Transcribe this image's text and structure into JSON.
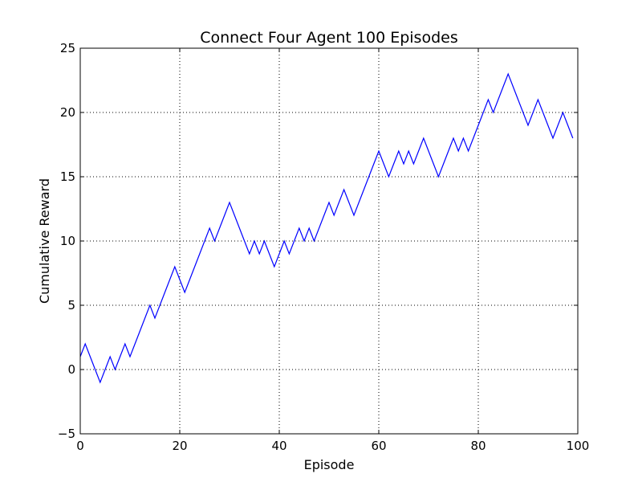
{
  "chart_data": {
    "type": "line",
    "title": "Connect Four Agent 100 Episodes",
    "xlabel": "Episode",
    "ylabel": "Cumulative Reward",
    "xlim": [
      0,
      100
    ],
    "ylim": [
      -5,
      25
    ],
    "xticks": [
      0,
      20,
      40,
      60,
      80,
      100
    ],
    "yticks": [
      -5,
      0,
      5,
      10,
      15,
      20,
      25
    ],
    "xtick_labels": [
      "0",
      "20",
      "40",
      "60",
      "80",
      "100"
    ],
    "ytick_labels": [
      "−5",
      "0",
      "5",
      "10",
      "15",
      "20",
      "25"
    ],
    "grid": true,
    "line_color": "#0000ff",
    "series": [
      {
        "x": [
          0,
          1,
          2,
          3,
          4,
          5,
          6,
          7,
          8,
          9,
          10,
          11,
          12,
          13,
          14,
          15,
          16,
          17,
          18,
          19,
          20,
          21,
          22,
          23,
          24,
          25,
          26,
          27,
          28,
          29,
          30,
          31,
          32,
          33,
          34,
          35,
          36,
          37,
          38,
          39,
          40,
          41,
          42,
          43,
          44,
          45,
          46,
          47,
          48,
          49,
          50,
          51,
          52,
          53,
          54,
          55,
          56,
          57,
          58,
          59,
          60,
          61,
          62,
          63,
          64,
          65,
          66,
          67,
          68,
          69,
          70,
          71,
          72,
          73,
          74,
          75,
          76,
          77,
          78,
          79,
          80,
          81,
          82,
          83,
          84,
          85,
          86,
          87,
          88,
          89,
          90,
          91,
          92,
          93,
          94,
          95,
          96,
          97,
          98,
          99
        ],
        "y": [
          1,
          2,
          1,
          0,
          -1,
          0,
          1,
          0,
          1,
          2,
          1,
          2,
          3,
          4,
          5,
          4,
          5,
          6,
          7,
          8,
          7,
          6,
          7,
          8,
          9,
          10,
          11,
          10,
          11,
          12,
          13,
          12,
          11,
          10,
          9,
          10,
          9,
          10,
          9,
          8,
          9,
          10,
          9,
          10,
          11,
          10,
          11,
          10,
          11,
          12,
          13,
          12,
          13,
          14,
          13,
          12,
          13,
          14,
          15,
          16,
          17,
          16,
          15,
          16,
          17,
          16,
          17,
          16,
          17,
          18,
          17,
          16,
          15,
          16,
          17,
          18,
          17,
          18,
          17,
          18,
          19,
          20,
          21,
          20,
          21,
          22,
          23,
          22,
          21,
          20,
          19,
          20,
          21,
          20,
          19,
          18,
          19,
          20,
          19,
          18
        ]
      }
    ]
  }
}
